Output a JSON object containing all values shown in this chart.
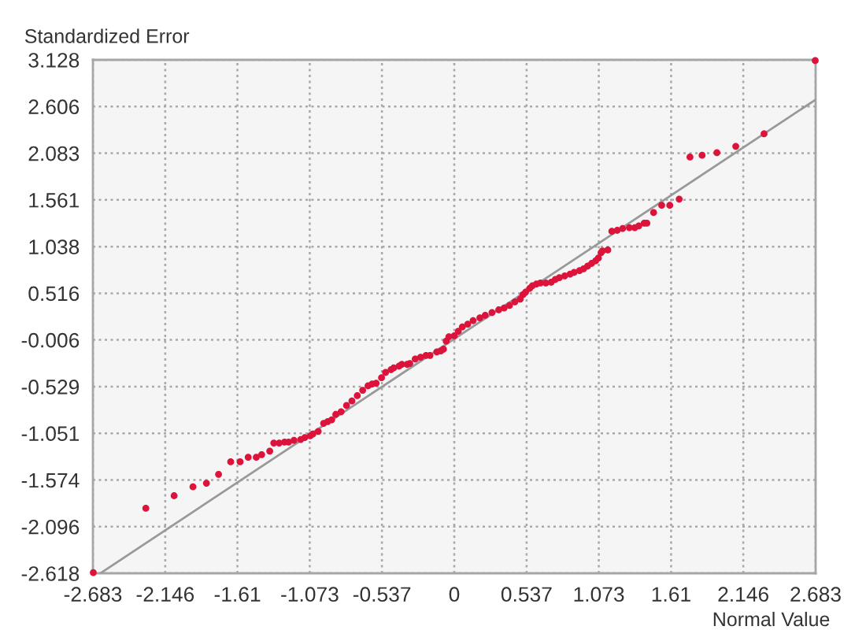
{
  "chart_data": {
    "type": "scatter",
    "xlabel": "Normal Value",
    "ylabel": "Standardized Error",
    "marker": "circle",
    "series": [
      {
        "color": "#dc143c",
        "x": [
          -2.68,
          -2.29,
          -2.08,
          -1.94,
          -1.84,
          -1.75,
          -1.66,
          -1.59,
          -1.53,
          -1.47,
          -1.43,
          -1.37,
          -1.34,
          -1.3,
          -1.26,
          -1.23,
          -1.19,
          -1.14,
          -1.11,
          -1.07,
          -1.05,
          -1.01,
          -0.97,
          -0.94,
          -0.91,
          -0.88,
          -0.84,
          -0.8,
          -0.76,
          -0.72,
          -0.68,
          -0.64,
          -0.61,
          -0.58,
          -0.54,
          -0.51,
          -0.47,
          -0.45,
          -0.41,
          -0.39,
          -0.35,
          -0.33,
          -0.29,
          -0.25,
          -0.21,
          -0.18,
          -0.13,
          -0.1,
          -0.08,
          -0.06,
          -0.04,
          0.0,
          0.03,
          0.06,
          0.1,
          0.14,
          0.19,
          0.23,
          0.28,
          0.33,
          0.37,
          0.41,
          0.45,
          0.49,
          0.51,
          0.53,
          0.56,
          0.58,
          0.61,
          0.64,
          0.68,
          0.72,
          0.75,
          0.78,
          0.82,
          0.86,
          0.89,
          0.93,
          0.96,
          0.99,
          1.02,
          1.05,
          1.07,
          1.09,
          1.1,
          1.14,
          1.17,
          1.21,
          1.25,
          1.3,
          1.34,
          1.37,
          1.41,
          1.43,
          1.48,
          1.54,
          1.6,
          1.67,
          1.75,
          1.84,
          1.95,
          2.09,
          2.3,
          2.68
        ],
        "values": [
          -2.61,
          -1.89,
          -1.75,
          -1.65,
          -1.61,
          -1.51,
          -1.37,
          -1.37,
          -1.32,
          -1.32,
          -1.29,
          -1.25,
          -1.16,
          -1.16,
          -1.15,
          -1.15,
          -1.13,
          -1.12,
          -1.1,
          -1.08,
          -1.06,
          -1.03,
          -0.94,
          -0.92,
          -0.9,
          -0.84,
          -0.81,
          -0.74,
          -0.69,
          -0.63,
          -0.57,
          -0.52,
          -0.5,
          -0.49,
          -0.43,
          -0.37,
          -0.34,
          -0.32,
          -0.3,
          -0.28,
          -0.28,
          -0.27,
          -0.22,
          -0.2,
          -0.18,
          -0.18,
          -0.14,
          -0.13,
          -0.11,
          -0.02,
          0.03,
          0.04,
          0.09,
          0.14,
          0.17,
          0.21,
          0.24,
          0.27,
          0.3,
          0.33,
          0.35,
          0.38,
          0.42,
          0.45,
          0.5,
          0.53,
          0.57,
          0.6,
          0.62,
          0.63,
          0.63,
          0.64,
          0.67,
          0.69,
          0.71,
          0.73,
          0.75,
          0.77,
          0.79,
          0.82,
          0.85,
          0.88,
          0.91,
          0.97,
          0.99,
          1.0,
          1.21,
          1.22,
          1.24,
          1.25,
          1.25,
          1.27,
          1.3,
          1.3,
          1.42,
          1.5,
          1.5,
          1.57,
          2.04,
          2.06,
          2.09,
          2.16,
          2.3,
          3.12
        ]
      },
      {
        "type": "line",
        "color": "#999999",
        "marker": "none",
        "x": [
          -2.62,
          2.68
        ],
        "values": [
          -2.61,
          2.68
        ]
      }
    ],
    "xlim": [
      -2.683,
      2.683
    ],
    "ylim": [
      -2.618,
      3.128
    ],
    "xticks": [
      -2.683,
      -2.146,
      -1.61,
      -1.073,
      -0.537,
      0,
      0.537,
      1.073,
      1.61,
      2.146,
      2.683
    ],
    "yticks": [
      -2.618,
      -2.096,
      -1.574,
      -1.051,
      -0.529,
      -0.006,
      0.516,
      1.038,
      1.561,
      2.083,
      2.606,
      3.128
    ],
    "grid": true
  }
}
